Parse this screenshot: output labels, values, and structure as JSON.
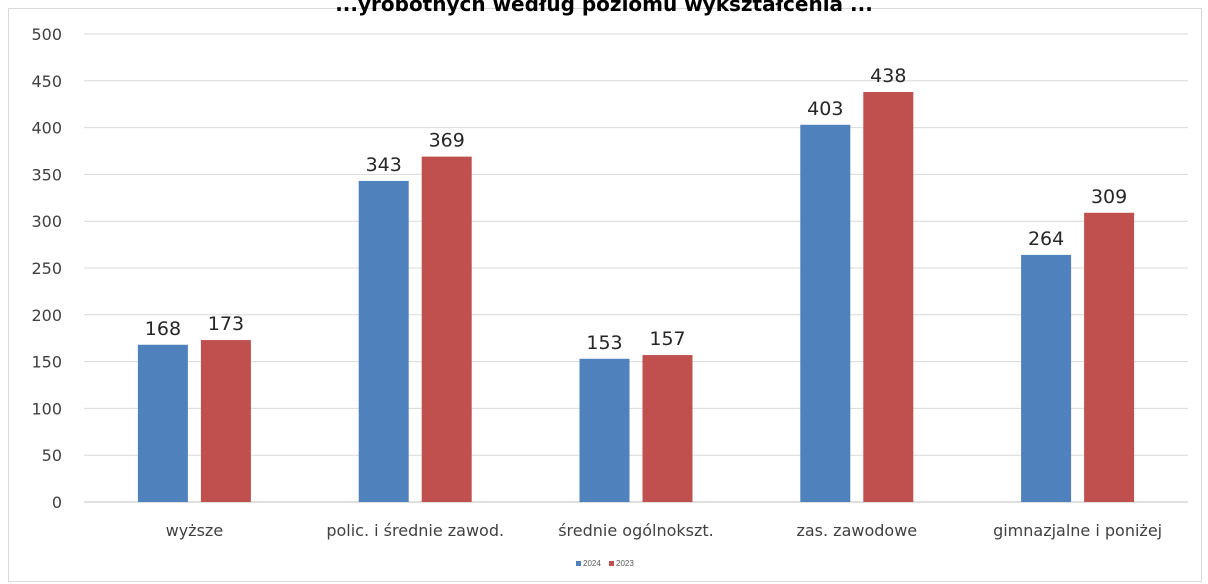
{
  "chart_data": {
    "type": "bar",
    "title": "...yrobotnych według poziomu wykształcenia ...",
    "categories": [
      "wyższe",
      "polic. i średnie zawod.",
      "średnie ogólnokszt.",
      "zas. zawodowe",
      "gimnazjalne i poniżej"
    ],
    "series": [
      {
        "name": "2024",
        "color": "#4f81bd",
        "values": [
          168,
          343,
          153,
          403,
          264
        ]
      },
      {
        "name": "2023",
        "color": "#c0504d",
        "values": [
          173,
          369,
          157,
          438,
          309
        ]
      }
    ],
    "ylim": [
      0,
      500
    ],
    "yticks": [
      0,
      50,
      100,
      150,
      200,
      250,
      300,
      350,
      400,
      450,
      500
    ],
    "grid": true,
    "legend": "bottom-center",
    "xlabel": "",
    "ylabel": ""
  }
}
